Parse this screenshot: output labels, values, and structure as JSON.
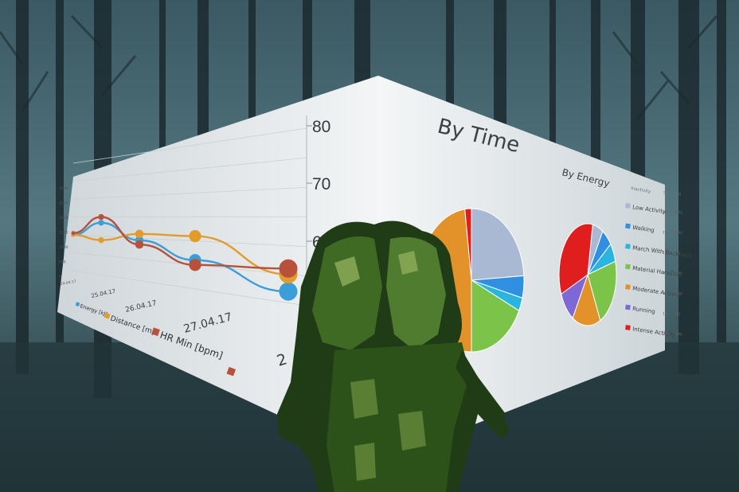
{
  "colors": {
    "sky_top": "#3f5f6a",
    "sky_mid": "#4d6f78",
    "ground": "#23383c",
    "trees": "#1c2b30",
    "panel": "#eef1f3",
    "soldier_dark": "#1f3c16",
    "soldier_mid": "#3f6a24",
    "soldier_light": "#8fae5a",
    "energy": "#3a9fd8",
    "distance": "#e39b2a",
    "hr": "#b8503a"
  },
  "left_chart": {
    "right_ticks": [
      "80",
      "70",
      "6"
    ],
    "left_ticks": [
      "3000",
      "2500",
      "2000",
      "1500",
      "1000",
      "500",
      "0"
    ],
    "start_date": "24.04.17",
    "x_ticks": [
      "25.04.17",
      "26.04.17",
      "27.04.17",
      "2"
    ],
    "legend": [
      "Energy [kJ]",
      "Distance [m]",
      "HR Min [bpm]"
    ],
    "chart_data": {
      "type": "line",
      "categories": [
        "24.04.17",
        "25.04.17",
        "26.04.17",
        "27.04.17",
        "28.04.17"
      ],
      "series": [
        {
          "name": "Energy [kJ]",
          "values": [
            1000,
            1350,
            950,
            600,
            200
          ]
        },
        {
          "name": "Distance [m]",
          "values": [
            1000,
            900,
            1100,
            1100,
            500
          ]
        },
        {
          "name": "HR Min [bpm]",
          "values": [
            1050,
            1500,
            850,
            500,
            600
          ]
        }
      ]
    }
  },
  "right_panel": {
    "title": "By Time",
    "pie2_title": "By Energy",
    "table_header": [
      "Inactivity",
      "55h 3m",
      "2kJ"
    ],
    "legend": [
      {
        "label": "Low Activity",
        "time": "89h 33m",
        "energy": "48kJ",
        "color": "#a9b9d3"
      },
      {
        "label": "Walking",
        "time": "1h 30m",
        "energy": "16kJ",
        "color": "#2f8fe0"
      },
      {
        "label": "March With Backpack",
        "time": "1h 11m",
        "energy": "3kJ",
        "color": "#29b5e0"
      },
      {
        "label": "Material Handling",
        "time": "7h 3m",
        "energy": "14kJ",
        "color": "#7cc34a"
      },
      {
        "label": "Moderate Activity",
        "time": "14h 27m",
        "energy": "17kJ",
        "color": "#e3922a"
      },
      {
        "label": "Running",
        "time": "1m",
        "energy": "2kJ",
        "color": "#7d68d6"
      },
      {
        "label": "Intense Activity",
        "time": "28m",
        "energy": "19kJ",
        "color": "#e01e1e"
      }
    ],
    "pie1_data": [
      {
        "label": "Low Activity",
        "value": 24,
        "color": "#a9b9d3"
      },
      {
        "label": "Walking",
        "value": 5,
        "color": "#2f8fe0"
      },
      {
        "label": "March With Backpack",
        "value": 3,
        "color": "#29b5e0"
      },
      {
        "label": "Material Handling",
        "value": 18,
        "color": "#7cc34a"
      },
      {
        "label": "Moderate Activity",
        "value": 48,
        "color": "#e3922a"
      },
      {
        "label": "Intense Activity",
        "value": 2,
        "color": "#e01e1e"
      }
    ],
    "pie2_data": [
      {
        "label": "Low Activity",
        "value": 6,
        "color": "#a9b9d3"
      },
      {
        "label": "Walking",
        "value": 6,
        "color": "#2f8fe0"
      },
      {
        "label": "March With Backpack",
        "value": 6,
        "color": "#29b5e0"
      },
      {
        "label": "Material Handling",
        "value": 22,
        "color": "#7cc34a"
      },
      {
        "label": "Moderate Activity",
        "value": 16,
        "color": "#e3922a"
      },
      {
        "label": "Running",
        "value": 10,
        "color": "#7d68d6"
      },
      {
        "label": "Intense Activity",
        "value": 34,
        "color": "#e01e1e"
      }
    ]
  }
}
